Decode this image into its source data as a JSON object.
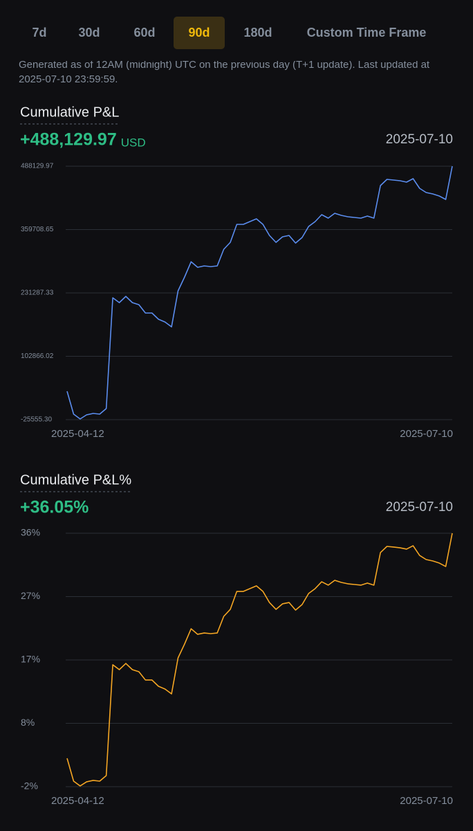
{
  "tabs": {
    "items": [
      "7d",
      "30d",
      "60d",
      "90d",
      "180d",
      "Custom Time Frame"
    ],
    "active": 3
  },
  "note": [
    "Generated as of 12AM (midnight) UTC on the previous day (T+1 update). Last updated at",
    "2025-07-10 23:59:59."
  ],
  "chart_data": [
    {
      "type": "line",
      "title": "Cumulative P&L",
      "value": "+488,129.97",
      "unit": "USD",
      "date": "2025-07-10",
      "categories": [
        "2025-04-12",
        null,
        null,
        null,
        null,
        null,
        null,
        null,
        null,
        null,
        null,
        null,
        null,
        null,
        null,
        null,
        null,
        null,
        null,
        null,
        null,
        null,
        null,
        null,
        null,
        null,
        null,
        null,
        null,
        null,
        null,
        null,
        null,
        null,
        null,
        null,
        null,
        null,
        null,
        null,
        null,
        null,
        null,
        null,
        null,
        null,
        null,
        null,
        null,
        null,
        null,
        null,
        null,
        null,
        null,
        null,
        null,
        null,
        null,
        "2025-07-10"
      ],
      "values": [
        31992,
        -14323,
        -24148,
        -15727,
        -12920,
        -14323,
        -3095,
        221465,
        211640,
        224272,
        211640,
        207430,
        190588,
        190588,
        177956,
        172342,
        162518,
        235500,
        263570,
        294447,
        283219,
        286026,
        284622,
        286026,
        319710,
        333745,
        370236,
        370236,
        375850,
        381464,
        370236,
        347780,
        333745,
        344973,
        347780,
        332341,
        343569,
        366025,
        375850,
        389885,
        382867,
        392692,
        388481,
        385674,
        384271,
        382867,
        387078,
        382867,
        448832,
        461463,
        460060,
        458656,
        455849,
        462867,
        443218,
        434797,
        431990,
        427779,
        420762,
        488129.97
      ],
      "color": "#5b8def",
      "ylim": [
        -25555.3,
        488129.97
      ],
      "yticks": [
        {
          "value": -25555.3,
          "label": "-25555.30"
        },
        102866.02,
        231287.33,
        359708.65,
        488129.97
      ],
      "grid": true
    },
    {
      "type": "line",
      "title": "Cumulative P&L%",
      "value": "+36.05%",
      "date": "2025-07-10",
      "categories": [
        "2025-04-12",
        null,
        null,
        null,
        null,
        null,
        null,
        null,
        null,
        null,
        null,
        null,
        null,
        null,
        null,
        null,
        null,
        null,
        null,
        null,
        null,
        null,
        null,
        null,
        null,
        null,
        null,
        null,
        null,
        null,
        null,
        null,
        null,
        null,
        null,
        null,
        null,
        null,
        null,
        null,
        null,
        null,
        null,
        null,
        null,
        null,
        null,
        null,
        null,
        null,
        null,
        null,
        null,
        null,
        null,
        null,
        null,
        null,
        null,
        "2025-07-10"
      ],
      "values": [
        2.36,
        -1.06,
        -1.78,
        -1.16,
        -0.95,
        -1.06,
        -0.23,
        16.36,
        15.63,
        16.56,
        15.63,
        15.32,
        14.08,
        14.08,
        13.14,
        12.73,
        12.0,
        17.39,
        19.47,
        21.75,
        20.92,
        21.12,
        21.02,
        21.12,
        23.61,
        24.65,
        27.34,
        27.34,
        27.76,
        28.17,
        27.34,
        25.68,
        24.65,
        25.48,
        25.68,
        24.54,
        25.37,
        27.03,
        27.76,
        28.79,
        28.28,
        29.0,
        28.69,
        28.48,
        28.38,
        28.28,
        28.59,
        28.28,
        33.15,
        34.08,
        33.98,
        33.87,
        33.67,
        34.18,
        32.73,
        32.11,
        31.9,
        31.59,
        31.07,
        36.05
      ],
      "color": "#f5a623",
      "ylim": [
        -1.89,
        36.05
      ],
      "yticks": [
        {
          "value": -1.89,
          "label": "-2%"
        },
        {
          "value": 7.6,
          "label": "8%"
        },
        {
          "value": 17.08,
          "label": "17%"
        },
        {
          "value": 26.57,
          "label": "27%"
        },
        {
          "value": 36.05,
          "label": "36%"
        }
      ],
      "grid": true
    }
  ]
}
